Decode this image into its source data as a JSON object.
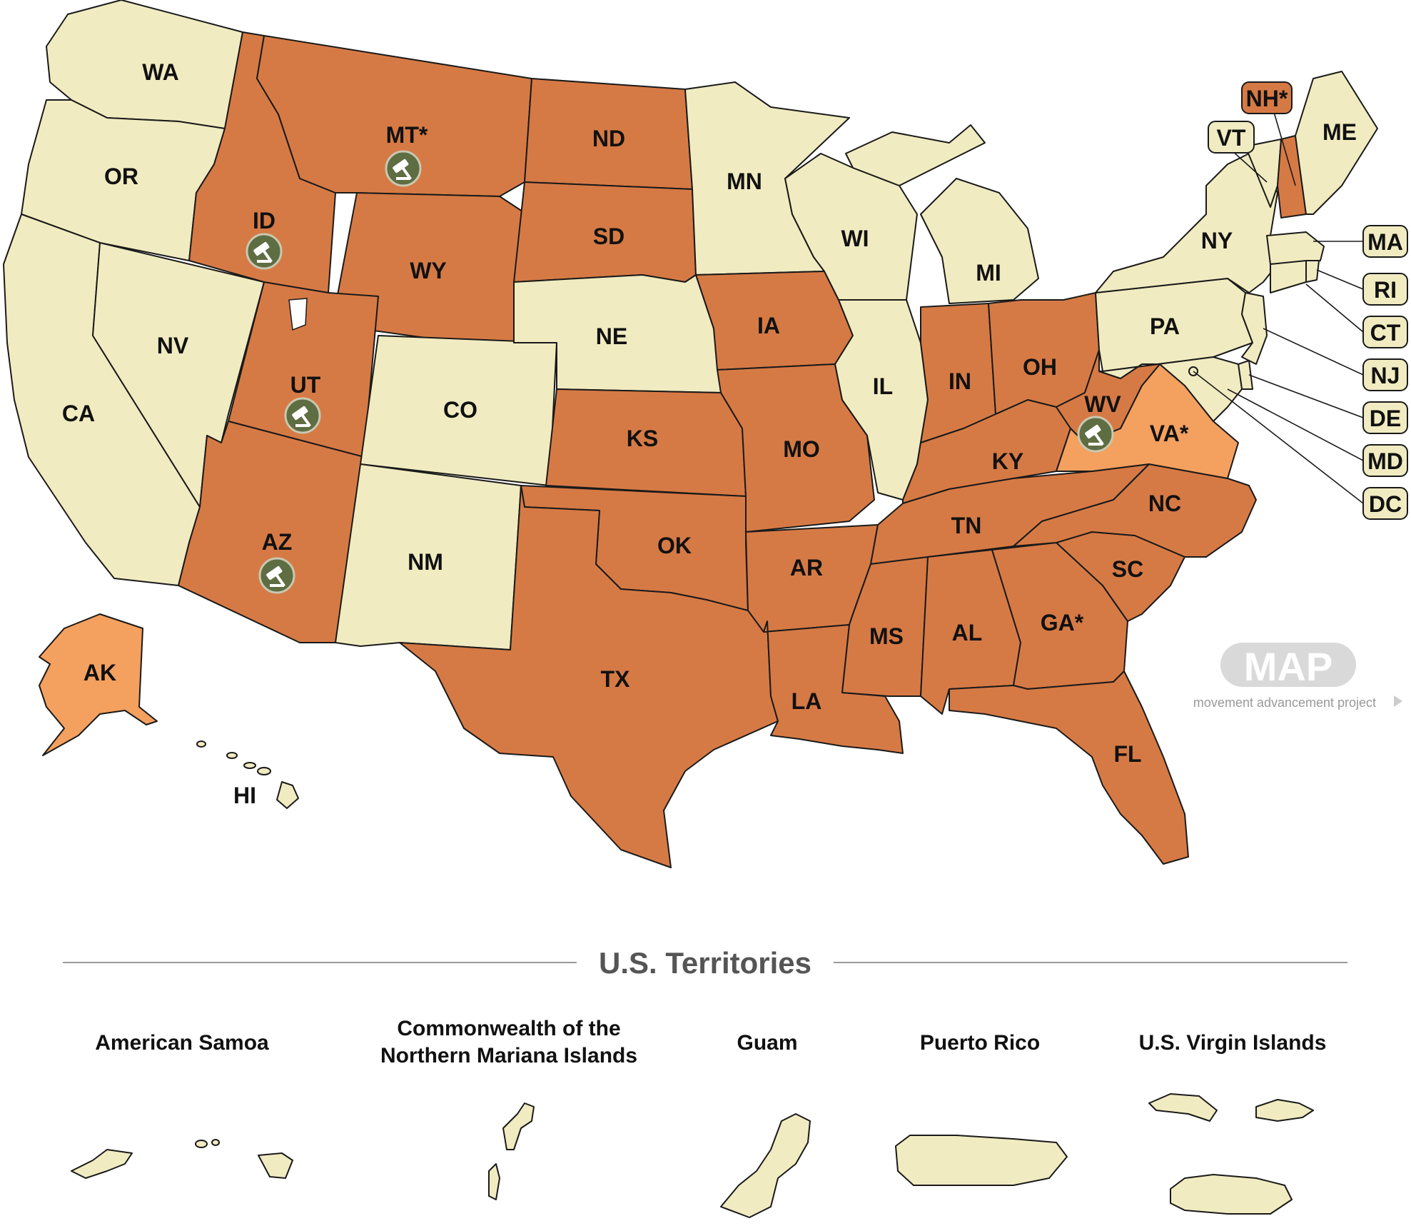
{
  "colors": {
    "no_law": "#f1ebc1",
    "law": "#d67a45",
    "partial": "#f4a05f",
    "gavel": "#5f6d42",
    "border": "#1a1a1a",
    "logo_gray": "#d9d9d9"
  },
  "states": {
    "WA": {
      "label": "WA",
      "status": "no_law"
    },
    "OR": {
      "label": "OR",
      "status": "no_law"
    },
    "CA": {
      "label": "CA",
      "status": "no_law"
    },
    "NV": {
      "label": "NV",
      "status": "no_law"
    },
    "ID": {
      "label": "ID",
      "status": "law",
      "gavel": true
    },
    "MT": {
      "label": "MT*",
      "status": "law",
      "gavel": true
    },
    "WY": {
      "label": "WY",
      "status": "law"
    },
    "UT": {
      "label": "UT",
      "status": "law",
      "gavel": true
    },
    "AZ": {
      "label": "AZ",
      "status": "law",
      "gavel": true
    },
    "CO": {
      "label": "CO",
      "status": "no_law"
    },
    "NM": {
      "label": "NM",
      "status": "no_law"
    },
    "ND": {
      "label": "ND",
      "status": "law"
    },
    "SD": {
      "label": "SD",
      "status": "law"
    },
    "NE": {
      "label": "NE",
      "status": "no_law"
    },
    "KS": {
      "label": "KS",
      "status": "law"
    },
    "OK": {
      "label": "OK",
      "status": "law"
    },
    "TX": {
      "label": "TX",
      "status": "law"
    },
    "MN": {
      "label": "MN",
      "status": "no_law"
    },
    "IA": {
      "label": "IA",
      "status": "law"
    },
    "MO": {
      "label": "MO",
      "status": "law"
    },
    "AR": {
      "label": "AR",
      "status": "law"
    },
    "LA": {
      "label": "LA",
      "status": "law"
    },
    "WI": {
      "label": "WI",
      "status": "no_law"
    },
    "IL": {
      "label": "IL",
      "status": "no_law"
    },
    "MI": {
      "label": "MI",
      "status": "no_law"
    },
    "IN": {
      "label": "IN",
      "status": "law"
    },
    "OH": {
      "label": "OH",
      "status": "law"
    },
    "KY": {
      "label": "KY",
      "status": "law"
    },
    "TN": {
      "label": "TN",
      "status": "law"
    },
    "MS": {
      "label": "MS",
      "status": "law"
    },
    "AL": {
      "label": "AL",
      "status": "law"
    },
    "GA": {
      "label": "GA*",
      "status": "law"
    },
    "FL": {
      "label": "FL",
      "status": "law"
    },
    "SC": {
      "label": "SC",
      "status": "law"
    },
    "NC": {
      "label": "NC",
      "status": "law"
    },
    "VA": {
      "label": "VA*",
      "status": "partial"
    },
    "WV": {
      "label": "WV",
      "status": "law",
      "gavel": true
    },
    "PA": {
      "label": "PA",
      "status": "no_law"
    },
    "NY": {
      "label": "NY",
      "status": "no_law"
    },
    "VT": {
      "label": "VT",
      "status": "no_law"
    },
    "NH": {
      "label": "NH*",
      "status": "law"
    },
    "ME": {
      "label": "ME",
      "status": "no_law"
    },
    "MA": {
      "label": "MA",
      "status": "no_law"
    },
    "RI": {
      "label": "RI",
      "status": "no_law"
    },
    "CT": {
      "label": "CT",
      "status": "no_law"
    },
    "NJ": {
      "label": "NJ",
      "status": "no_law"
    },
    "DE": {
      "label": "DE",
      "status": "no_law"
    },
    "MD": {
      "label": "MD",
      "status": "no_law"
    },
    "DC": {
      "label": "DC",
      "status": "no_law"
    },
    "AK": {
      "label": "AK",
      "status": "partial"
    },
    "HI": {
      "label": "HI",
      "status": "no_law"
    }
  },
  "territories_title": "U.S. Territories",
  "territories": {
    "as": {
      "name": "American Samoa",
      "status": "no_law"
    },
    "cnmi": {
      "name_line1": "Commonwealth of the",
      "name_line2": "Northern Mariana Islands",
      "status": "no_law"
    },
    "gu": {
      "name": "Guam",
      "status": "no_law"
    },
    "pr": {
      "name": "Puerto Rico",
      "status": "no_law"
    },
    "vi": {
      "name": "U.S. Virgin Islands",
      "status": "no_law"
    }
  },
  "logo": {
    "text": "MAP",
    "subtitle": "movement advancement project"
  }
}
